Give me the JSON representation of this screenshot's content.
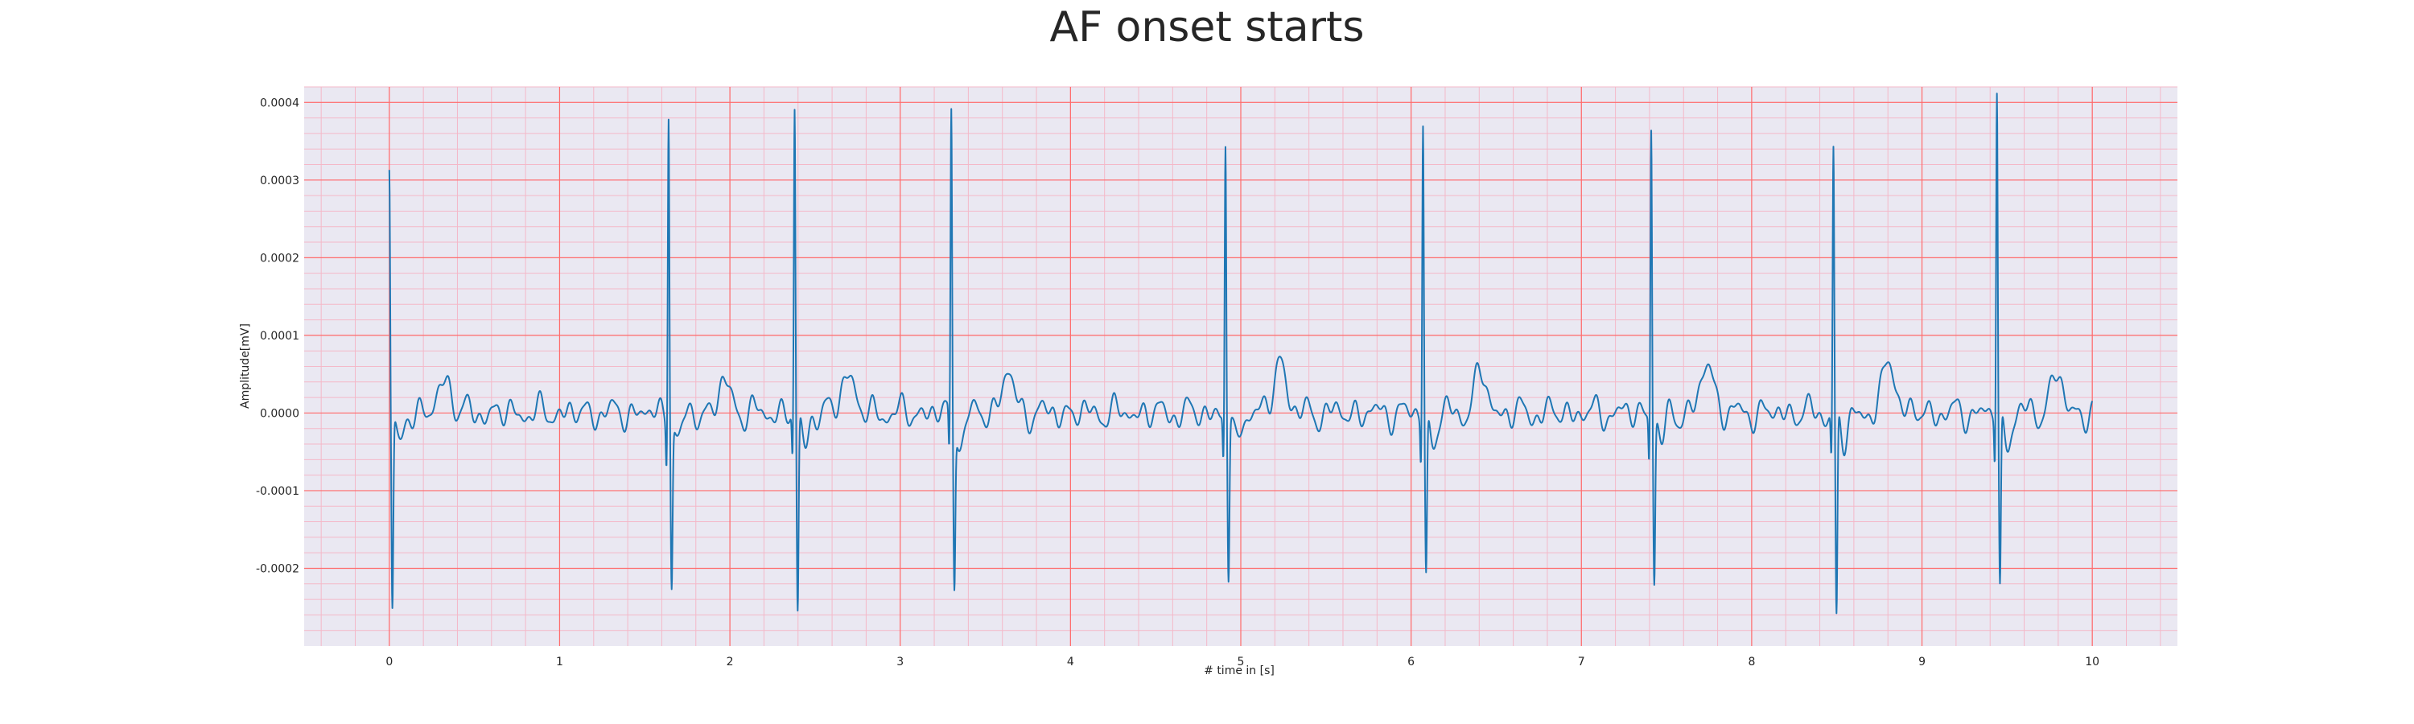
{
  "chart_data": {
    "type": "line",
    "title": "AF onset starts",
    "xlabel": "# time in [s]",
    "ylabel": "Amplitude[mV]",
    "xlim": [
      -0.5,
      10.5
    ],
    "ylim": [
      -0.0003,
      0.00042
    ],
    "x_ticks": [
      0,
      1,
      2,
      3,
      4,
      5,
      6,
      7,
      8,
      9,
      10
    ],
    "x_tick_labels": [
      "0",
      "1",
      "2",
      "3",
      "4",
      "5",
      "6",
      "7",
      "8",
      "9",
      "10"
    ],
    "y_ticks": [
      -0.0002,
      -0.0001,
      0.0,
      0.0001,
      0.0002,
      0.0003,
      0.0004
    ],
    "y_tick_labels": [
      "-0.0002",
      "-0.0001",
      "0.0000",
      "0.0001",
      "0.0002",
      "0.0003",
      "0.0004"
    ],
    "grid": true,
    "grid_major_color": "#ff6b6b",
    "grid_minor_color": "#f4b8c8",
    "background_color": "#eae8f2",
    "series": [
      {
        "color": "#1f77b4",
        "beats": [
          {
            "t": 0.0,
            "r": 0.00028,
            "s": -0.00025
          },
          {
            "t": 1.64,
            "r": 0.00038,
            "s": -0.0002
          },
          {
            "t": 2.38,
            "r": 0.00037,
            "s": -0.00025
          },
          {
            "t": 3.3,
            "r": 0.00037,
            "s": -0.0002
          },
          {
            "t": 4.91,
            "r": 0.00033,
            "s": -0.0002
          },
          {
            "t": 6.07,
            "r": 0.00036,
            "s": -0.0002
          },
          {
            "t": 7.41,
            "r": 0.00036,
            "s": -0.0002
          },
          {
            "t": 8.48,
            "r": 0.00032,
            "s": -0.00026
          },
          {
            "t": 9.44,
            "r": 0.0004,
            "s": -0.00022
          }
        ],
        "t_waves": [
          {
            "t": 0.33,
            "a": 4.5e-05
          },
          {
            "t": 1.97,
            "a": 4e-05
          },
          {
            "t": 2.69,
            "a": 5.5e-05
          },
          {
            "t": 3.63,
            "a": 5.2e-05
          },
          {
            "t": 5.23,
            "a": 6.8e-05
          },
          {
            "t": 6.41,
            "a": 5.2e-05
          },
          {
            "t": 7.74,
            "a": 6.7e-05
          },
          {
            "t": 8.81,
            "a": 7e-05
          },
          {
            "t": 9.79,
            "a": 5e-05
          }
        ],
        "t_end": 10.0
      }
    ]
  }
}
